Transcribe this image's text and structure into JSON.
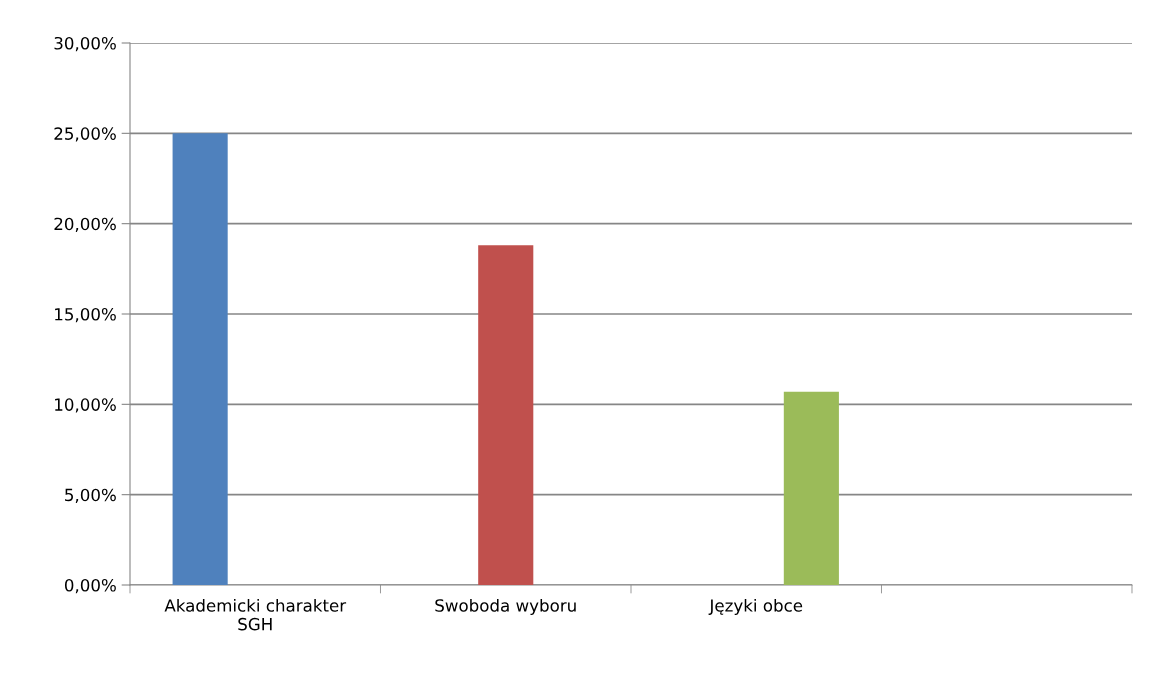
{
  "chart_data": {
    "type": "bar",
    "categories": [
      "Akademicki charakter\nSGH",
      "Swoboda wyboru",
      "Języki obce",
      null
    ],
    "series": [
      {
        "color": "#4f81bd",
        "values": [
          25,
          null,
          null,
          null
        ]
      },
      {
        "color": "#c0504d",
        "values": [
          null,
          18.8,
          null,
          null
        ]
      },
      {
        "color": "#9bbb59",
        "values": [
          null,
          null,
          10.7,
          null
        ]
      }
    ],
    "ylim": [
      0,
      30
    ],
    "yticks": [
      {
        "value": 0,
        "label": "0,00%"
      },
      {
        "value": 5,
        "label": "5,00%"
      },
      {
        "value": 10,
        "label": "10,00%"
      },
      {
        "value": 15,
        "label": "15,00%"
      },
      {
        "value": 20,
        "label": "20,00%"
      },
      {
        "value": 25,
        "label": "25,00%"
      },
      {
        "value": 30,
        "label": "30,00%"
      }
    ],
    "grid": "y"
  }
}
